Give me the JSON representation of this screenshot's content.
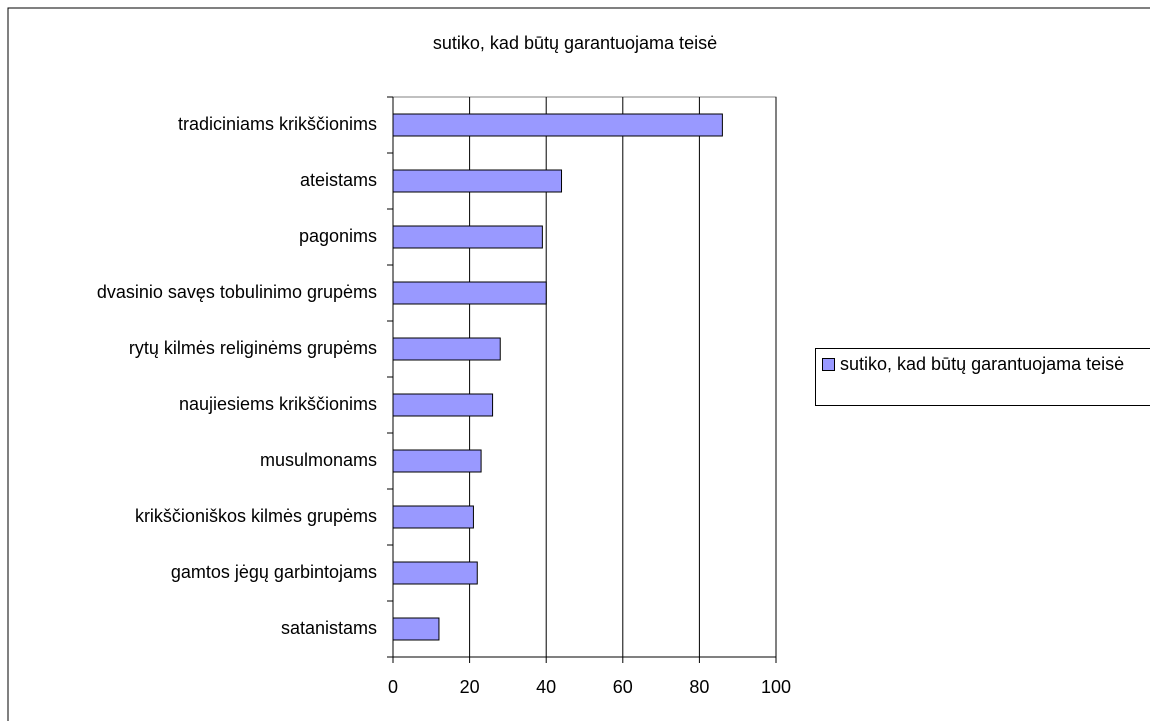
{
  "chart_data": {
    "type": "bar",
    "orientation": "horizontal",
    "title": "sutiko, kad būtų garantuojama teisė",
    "categories": [
      "tradiciniams krikščionims",
      "ateistams",
      "pagonims",
      "dvasinio savęs tobulinimo grupėms",
      "rytų kilmės religinėms grupėms",
      "naujiesiems krikščionims",
      "musulmonams",
      "krikščioniškos kilmės grupėms",
      "gamtos jėgų garbintojams",
      "satanistams"
    ],
    "series": [
      {
        "name": "sutiko, kad būtų garantuojama teisė",
        "color": "#9999ff",
        "values": [
          86,
          44,
          39,
          40,
          28,
          26,
          23,
          21,
          22,
          12
        ]
      }
    ],
    "xlim": [
      0,
      100
    ],
    "xticks": [
      0,
      20,
      40,
      60,
      80,
      100
    ],
    "grid": true,
    "legend": "right"
  }
}
